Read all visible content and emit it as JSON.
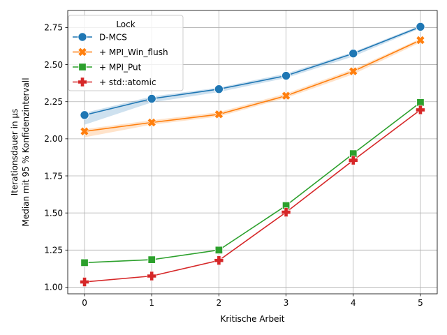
{
  "chart_data": {
    "type": "line",
    "xlabel": "Kritische Arbeit",
    "ylabel_lines": [
      "Iterationsdauer in µs",
      "Median mit 95 % Konfidenzintervall"
    ],
    "x": [
      0,
      1,
      2,
      3,
      4,
      5
    ],
    "xlim": [
      -0.25,
      5.25
    ],
    "ylim": [
      0.955,
      2.865
    ],
    "xticks": [
      "0",
      "1",
      "2",
      "3",
      "4",
      "5"
    ],
    "yticks": [
      "1.00",
      "1.25",
      "1.50",
      "1.75",
      "2.00",
      "2.25",
      "2.50",
      "2.75"
    ],
    "grid": true,
    "legend": {
      "title": "Lock",
      "placement": "top-left"
    },
    "series": [
      {
        "name": "D-MCS",
        "color": "#1f77b4",
        "marker": "circle",
        "values": [
          2.16,
          2.27,
          2.335,
          2.425,
          2.575,
          2.755
        ],
        "ci_low": [
          2.095,
          2.245,
          2.315,
          2.41,
          2.555,
          2.745
        ],
        "ci_high": [
          2.175,
          2.285,
          2.345,
          2.44,
          2.585,
          2.765
        ]
      },
      {
        "name": "+ MPI_Win_flush",
        "color": "#ff7f0e",
        "marker": "x",
        "values": [
          2.05,
          2.11,
          2.165,
          2.29,
          2.455,
          2.665
        ],
        "ci_low": [
          2.01,
          2.095,
          2.15,
          2.275,
          2.435,
          2.65
        ],
        "ci_high": [
          2.065,
          2.125,
          2.18,
          2.305,
          2.47,
          2.675
        ]
      },
      {
        "name": "+ MPI_Put",
        "color": "#2ca02c",
        "marker": "square",
        "values": [
          1.165,
          1.185,
          1.25,
          1.55,
          1.9,
          2.245
        ]
      },
      {
        "name": "+ std::atomic",
        "color": "#d62728",
        "marker": "plus",
        "values": [
          1.035,
          1.075,
          1.18,
          1.505,
          1.855,
          2.195
        ]
      }
    ]
  }
}
